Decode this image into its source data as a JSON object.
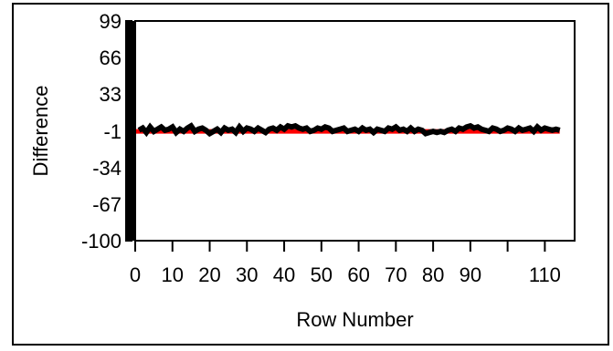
{
  "chart_data": {
    "type": "line",
    "title": "",
    "xlabel": "Row Number",
    "ylabel": "Difference",
    "xlim": [
      0,
      118
    ],
    "ylim": [
      -100,
      99
    ],
    "xticks": [
      0,
      10,
      20,
      30,
      40,
      50,
      60,
      70,
      80,
      90,
      110
    ],
    "yticks": [
      99,
      66,
      33,
      -1,
      -34,
      -67,
      -100
    ],
    "grid": false,
    "colors": {
      "series": "#000000",
      "reference": "#ff0000",
      "left_bar": "#000000"
    },
    "series": [
      {
        "x": [
          1,
          2,
          3,
          4,
          5,
          6,
          7,
          8,
          9,
          10,
          11,
          12,
          13,
          14,
          15,
          16,
          17,
          18,
          19,
          20,
          21,
          22,
          23,
          24,
          25,
          26,
          27,
          28,
          29,
          30,
          31,
          32,
          33,
          34,
          35,
          36,
          37,
          38,
          39,
          40,
          41,
          42,
          43,
          44,
          45,
          46,
          47,
          48,
          49,
          50,
          51,
          52,
          53,
          54,
          55,
          56,
          57,
          58,
          59,
          60,
          61,
          62,
          63,
          64,
          65,
          66,
          67,
          68,
          69,
          70,
          71,
          72,
          73,
          74,
          75,
          76,
          77,
          78,
          79,
          80,
          81,
          82,
          83,
          84,
          85,
          86,
          87,
          88,
          89,
          90,
          91,
          92,
          93,
          94,
          95,
          96,
          97,
          98,
          99,
          100,
          101,
          102,
          103,
          104,
          105,
          106,
          107,
          108,
          109,
          110,
          111,
          112,
          113,
          114
        ],
        "values": [
          0,
          2,
          -2,
          3,
          -1,
          1,
          3,
          0,
          1,
          3,
          -2,
          1,
          -1,
          2,
          4,
          -1,
          1,
          2,
          0,
          -3,
          -1,
          1,
          -2,
          2,
          0,
          1,
          -2,
          3,
          -1,
          2,
          1,
          -1,
          2,
          0,
          -2,
          1,
          2,
          0,
          3,
          1,
          4,
          3,
          4,
          2,
          1,
          2,
          -1,
          0,
          2,
          1,
          3,
          2,
          -1,
          0,
          1,
          2,
          -1,
          0,
          1,
          -1,
          2,
          0,
          1,
          -2,
          1,
          0,
          -1,
          2,
          1,
          3,
          0,
          1,
          -1,
          2,
          -1,
          1,
          0,
          -3,
          -2,
          -1,
          -2,
          -1,
          -2,
          0,
          1,
          -1,
          2,
          1,
          3,
          4,
          2,
          3,
          1,
          0,
          -1,
          2,
          1,
          -1,
          0,
          2,
          1,
          -1,
          2,
          0,
          1,
          2,
          -1,
          3,
          0,
          2,
          1,
          0,
          1,
          0
        ]
      }
    ]
  }
}
